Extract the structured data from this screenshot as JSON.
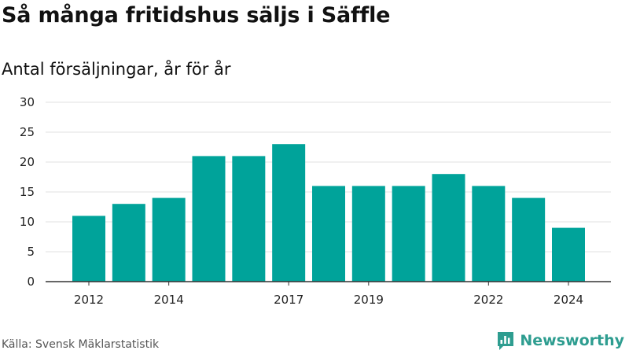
{
  "header": {
    "title": "Så många fritidshus säljs i Säffle",
    "subtitle": "Antal försäljningar, år för år"
  },
  "footer": {
    "source": "Källa: Svensk Mäklarstatistik",
    "brand": "Newsworthy"
  },
  "colors": {
    "bar": "#00a39a",
    "grid": "#e2e2e2",
    "axis": "#333333",
    "brand": "#2e9d90"
  },
  "icons": {
    "brand": "bar-chart-speech-bubble-icon"
  },
  "chart_data": {
    "type": "bar",
    "title": "Så många fritidshus säljs i Säffle",
    "subtitle": "Antal försäljningar, år för år",
    "categories": [
      "2012",
      "2013",
      "2014",
      "2015",
      "2016",
      "2017",
      "2018",
      "2019",
      "2020",
      "2021",
      "2022",
      "2023",
      "2024"
    ],
    "x_tick_labels": [
      "2012",
      "",
      "2014",
      "",
      "",
      "2017",
      "",
      "2019",
      "",
      "",
      "2022",
      "",
      "2024"
    ],
    "values": [
      11,
      13,
      14,
      21,
      21,
      23,
      16,
      16,
      16,
      18,
      16,
      14,
      9
    ],
    "ylim": [
      0,
      30
    ],
    "yticks": [
      0,
      5,
      10,
      15,
      20,
      25,
      30
    ],
    "grid": true,
    "legend": "none"
  }
}
